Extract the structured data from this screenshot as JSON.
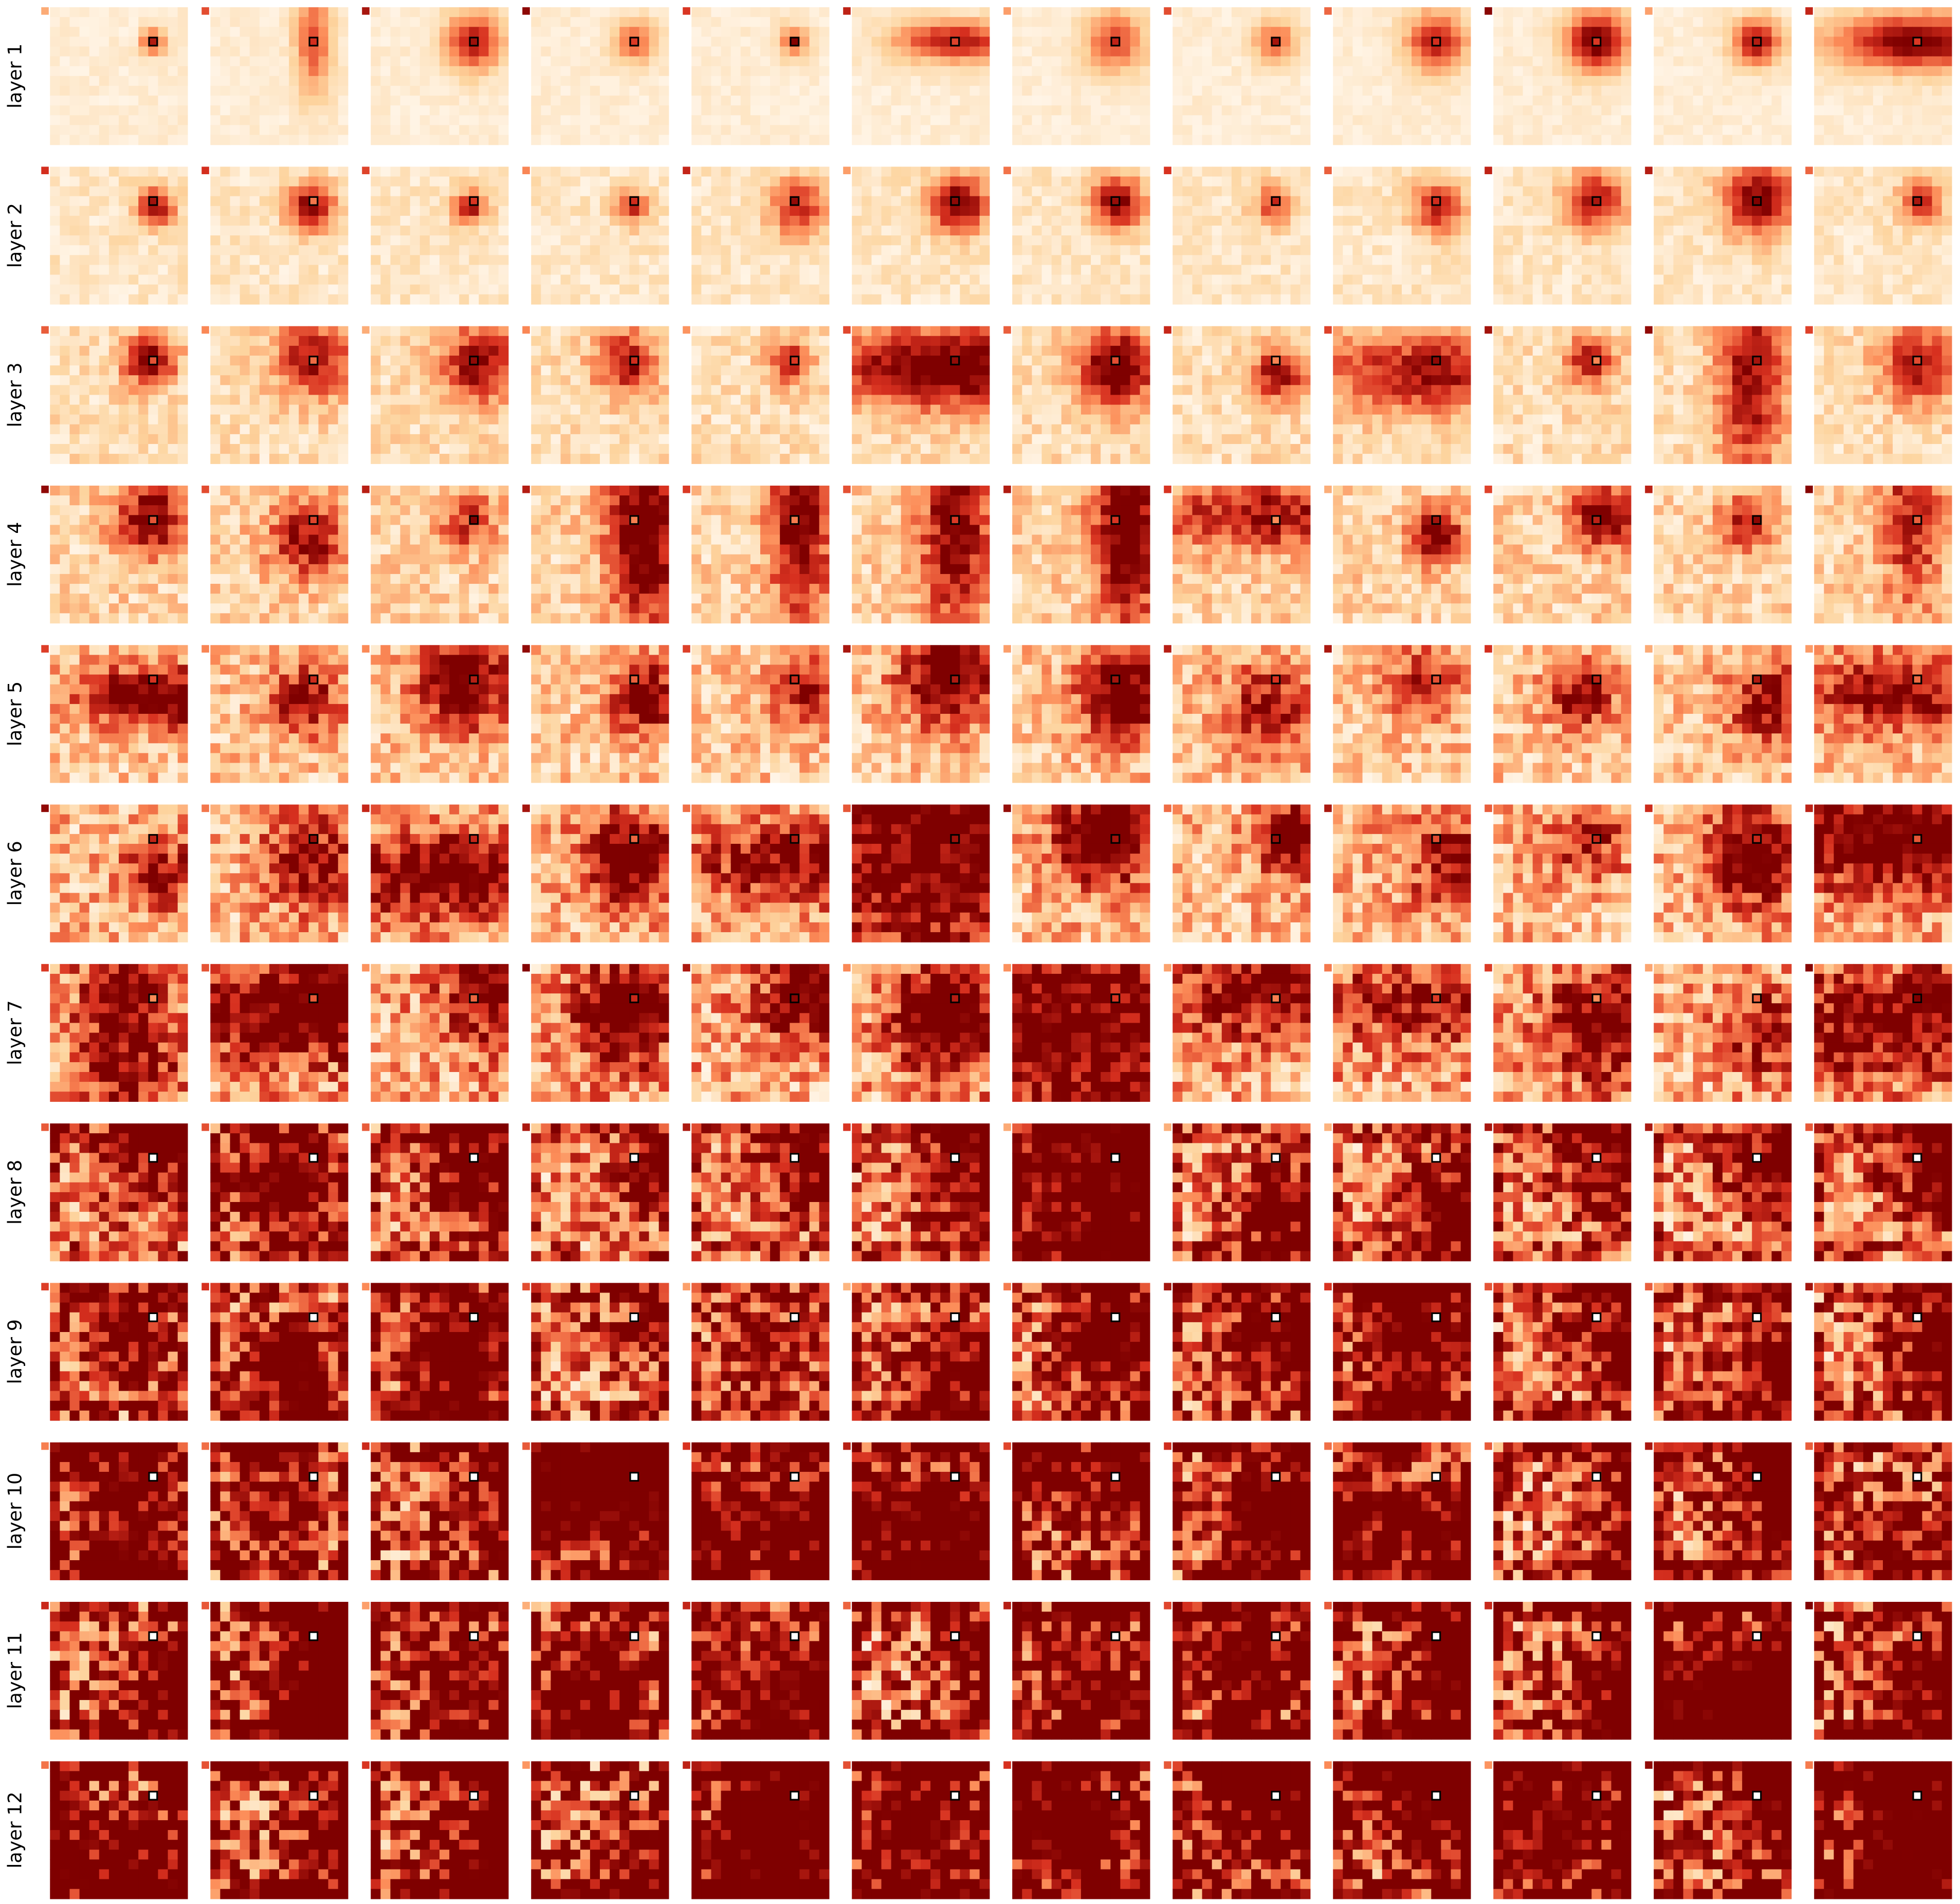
{
  "rows": [
    {
      "label": "layer 1"
    },
    {
      "label": "layer 2"
    },
    {
      "label": "layer 3"
    },
    {
      "label": "layer 4"
    },
    {
      "label": "layer 5"
    },
    {
      "label": "layer 6"
    },
    {
      "label": "layer 7"
    },
    {
      "label": "layer 8"
    },
    {
      "label": "layer 9"
    },
    {
      "label": "layer 10"
    },
    {
      "label": "layer 11"
    },
    {
      "label": "layer 12"
    }
  ]
}
